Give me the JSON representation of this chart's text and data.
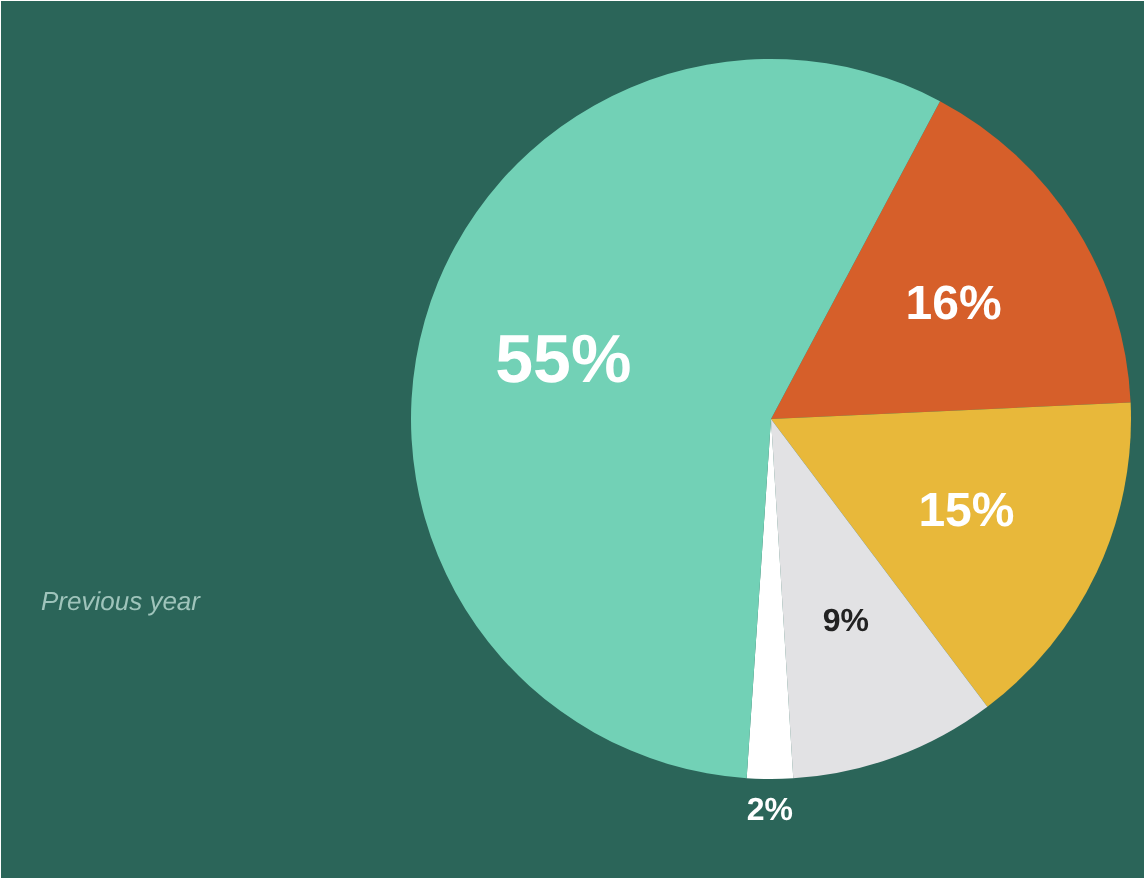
{
  "chart_data": {
    "type": "pie",
    "categories": [
      null,
      null,
      null,
      null,
      null
    ],
    "values": [
      16,
      15,
      9,
      2,
      55
    ],
    "value_labels": [
      "16%",
      "15%",
      "9%",
      "2%",
      "55%"
    ],
    "colors": [
      "#d65f2a",
      "#e8b83a",
      "#e2e2e4",
      "#ffffff",
      "#72d1b6"
    ],
    "annotations": [
      "Previous year"
    ]
  }
}
